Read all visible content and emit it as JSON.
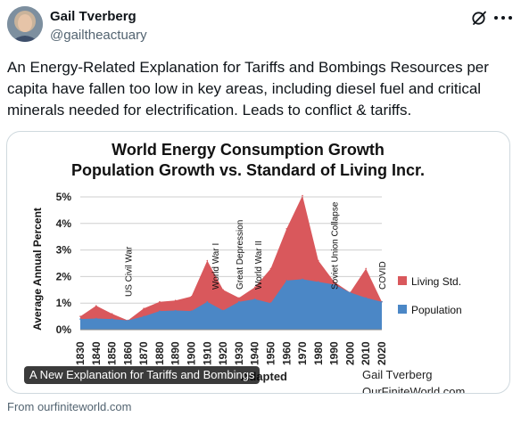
{
  "author": {
    "name": "Gail Tverberg",
    "handle": "@gailtheactuary"
  },
  "tweet": {
    "text": "An Energy-Related Explanation for Tariffs and Bombings  Resources per capita have fallen too low in key areas, including diesel fuel and critical minerals needed for electrification. Leads to conflict & tariffs."
  },
  "card": {
    "title": "A New Explanation for Tariffs and Bombings",
    "source": "From ourfiniteworld.com"
  },
  "chart_data": {
    "type": "area",
    "title": "World Energy Consumption Growth",
    "subtitle": "Population Growth vs. Standard of Living Incr.",
    "ylabel": "Average Annual Percent",
    "y_ticks": [
      "5%",
      "4%",
      "3%",
      "2%",
      "1%",
      "0%"
    ],
    "ylim": [
      0,
      5
    ],
    "x": [
      "1830",
      "1840",
      "1850",
      "1860",
      "1870",
      "1880",
      "1890",
      "1900",
      "1910",
      "1920",
      "1930",
      "1940",
      "1950",
      "1960",
      "1970",
      "1980",
      "1990",
      "2000",
      "2010",
      "2020"
    ],
    "series": [
      {
        "name": "Living Std.",
        "color": "#d9585c",
        "total": [
          0.5,
          0.9,
          0.6,
          0.35,
          0.8,
          1.05,
          1.1,
          1.25,
          2.6,
          1.5,
          1.2,
          1.6,
          2.3,
          3.8,
          5.05,
          2.6,
          1.8,
          1.4,
          2.3,
          1.05
        ]
      },
      {
        "name": "Population",
        "color": "#4b87c6",
        "values": [
          0.4,
          0.42,
          0.4,
          0.35,
          0.5,
          0.7,
          0.72,
          0.7,
          1.05,
          0.72,
          1.05,
          1.15,
          1.0,
          1.85,
          1.9,
          1.8,
          1.7,
          1.4,
          1.2,
          1.05
        ]
      }
    ],
    "annotations": [
      {
        "x": "1860",
        "text": "US Civil War"
      },
      {
        "x": "1915",
        "text": "World War I"
      },
      {
        "x": "1930",
        "text": "Great Depression"
      },
      {
        "x": "1942",
        "text": "World War II"
      },
      {
        "x": "1990",
        "text": "Soviet Union Collapse"
      },
      {
        "x": "2020",
        "text": "COVID"
      }
    ],
    "legend_position": "right",
    "footer_text": [
      "Gail Tverberg",
      "OurFiniteWorld.com"
    ],
    "bottom_caption": "Adapted"
  }
}
